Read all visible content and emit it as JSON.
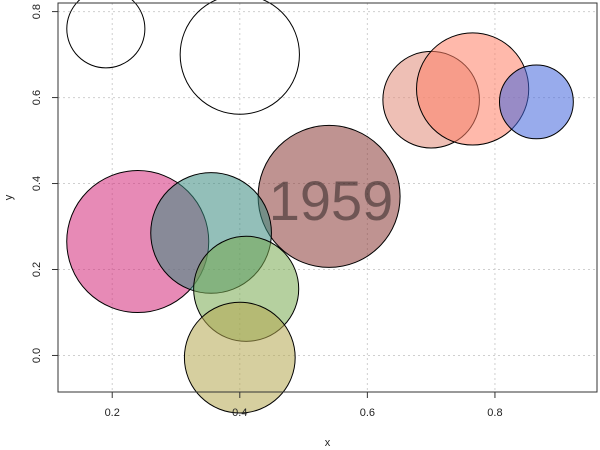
{
  "chart_data": {
    "type": "scatter",
    "title": "",
    "xlabel": "x",
    "ylabel": "y",
    "annotation": "1959",
    "xlim": [
      0.115,
      0.96
    ],
    "ylim": [
      -0.085,
      0.82
    ],
    "x_ticks": [
      0.2,
      0.4,
      0.6,
      0.8
    ],
    "y_ticks": [
      0.0,
      0.2,
      0.4,
      0.6,
      0.8
    ],
    "x_tick_labels": [
      "0.2",
      "0.4",
      "0.6",
      "0.8"
    ],
    "y_tick_labels": [
      "0.0",
      "0.2",
      "0.4",
      "0.6",
      "0.8"
    ],
    "grid": true,
    "legend": "none",
    "points": [
      {
        "x": 0.19,
        "y": 0.76,
        "size": 0.55,
        "color": "none"
      },
      {
        "x": 0.4,
        "y": 0.7,
        "size": 0.84,
        "color": "none"
      },
      {
        "x": 0.7,
        "y": 0.595,
        "size": 0.68,
        "color": "#E08A78"
      },
      {
        "x": 0.765,
        "y": 0.62,
        "size": 0.79,
        "color": "#FF7F66"
      },
      {
        "x": 0.865,
        "y": 0.59,
        "size": 0.52,
        "color": "#4466DD"
      },
      {
        "x": 0.54,
        "y": 0.37,
        "size": 1.0,
        "color": "#8B3A36"
      },
      {
        "x": 0.24,
        "y": 0.265,
        "size": 1.0,
        "color": "#D42A7A"
      },
      {
        "x": 0.355,
        "y": 0.285,
        "size": 0.85,
        "color": "#3A8A80"
      },
      {
        "x": 0.41,
        "y": 0.155,
        "size": 0.74,
        "color": "#78AA50"
      },
      {
        "x": 0.4,
        "y": -0.005,
        "size": 0.78,
        "color": "#B4A850"
      }
    ]
  }
}
